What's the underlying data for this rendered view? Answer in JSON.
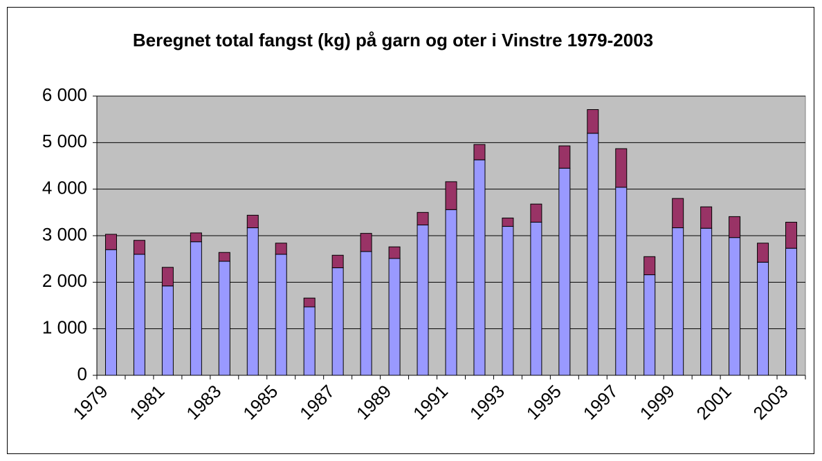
{
  "chart_data": {
    "type": "bar",
    "stacked": true,
    "title": "Beregnet total fangst (kg)  på garn og oter i Vinstre 1979-2003",
    "categories": [
      "1979",
      null,
      "1981",
      null,
      "1983",
      null,
      "1985",
      null,
      "1987",
      null,
      "1989",
      null,
      "1991",
      null,
      "1993",
      null,
      "1995",
      null,
      "1997",
      null,
      "1999",
      null,
      "2001",
      null,
      "2003"
    ],
    "series": [
      {
        "color": "#9999ff",
        "values": [
          2700,
          2600,
          1920,
          2870,
          2450,
          3170,
          2600,
          1470,
          2310,
          2660,
          2510,
          3230,
          3560,
          4630,
          3200,
          3290,
          4450,
          5200,
          4040,
          2160,
          3170,
          3160,
          2960,
          2430,
          2730
        ]
      },
      {
        "color": "#993366",
        "values": [
          330,
          300,
          400,
          190,
          190,
          270,
          240,
          190,
          270,
          390,
          250,
          270,
          600,
          330,
          180,
          390,
          480,
          510,
          830,
          390,
          630,
          460,
          450,
          410,
          560
        ]
      }
    ],
    "ylim": [
      0,
      6000
    ],
    "yticks": [
      0,
      {
        "value": 1000,
        "label": "1 000"
      },
      {
        "value": 2000,
        "label": "2 000"
      },
      {
        "value": 3000,
        "label": "3 000"
      },
      {
        "value": 4000,
        "label": "4 000"
      },
      {
        "value": 5000,
        "label": "5 000"
      },
      {
        "value": 6000,
        "label": "6 000"
      }
    ],
    "grid": true,
    "plot_background": "#c0c0c0"
  }
}
